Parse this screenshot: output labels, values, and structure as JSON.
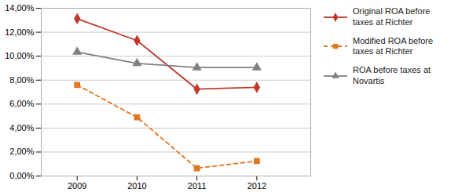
{
  "chart_data": {
    "type": "line",
    "x": [
      2009,
      2010,
      2011,
      2012
    ],
    "series": [
      {
        "name": "Original ROA before\ntaxes at Richter",
        "color": "#c0392b",
        "marker": "diamond",
        "line_style": "solid",
        "values": [
          0.1313,
          0.113,
          0.0725,
          0.074
        ]
      },
      {
        "name": "Modified ROA before\ntaxes at Richter",
        "color": "#e07820",
        "marker": "square",
        "line_style": "dashed",
        "values": [
          0.076,
          0.049,
          0.0065,
          0.0125
        ]
      },
      {
        "name": "ROA before taxes at\nNovartis",
        "color": "#808080",
        "marker": "triangle",
        "line_style": "solid",
        "values": [
          0.1035,
          0.094,
          0.0905,
          0.0905
        ]
      }
    ],
    "xlim": [
      2008.4,
      2012.9
    ],
    "xticks": [
      2009,
      2010,
      2011,
      2012
    ],
    "ylim": [
      0,
      0.14
    ],
    "yticks": [
      {
        "value": 0,
        "label": "0,00%"
      },
      {
        "value": 0.02,
        "label": "2,00%"
      },
      {
        "value": 0.04,
        "label": "4,00%"
      },
      {
        "value": 0.06,
        "label": "6,00%"
      },
      {
        "value": 0.08,
        "label": "8,00%"
      },
      {
        "value": 0.1,
        "label": "10,00%"
      },
      {
        "value": 0.12,
        "label": "12,00%"
      },
      {
        "value": 0.14,
        "label": "14,00%"
      }
    ],
    "grid": true,
    "legend": "right"
  }
}
